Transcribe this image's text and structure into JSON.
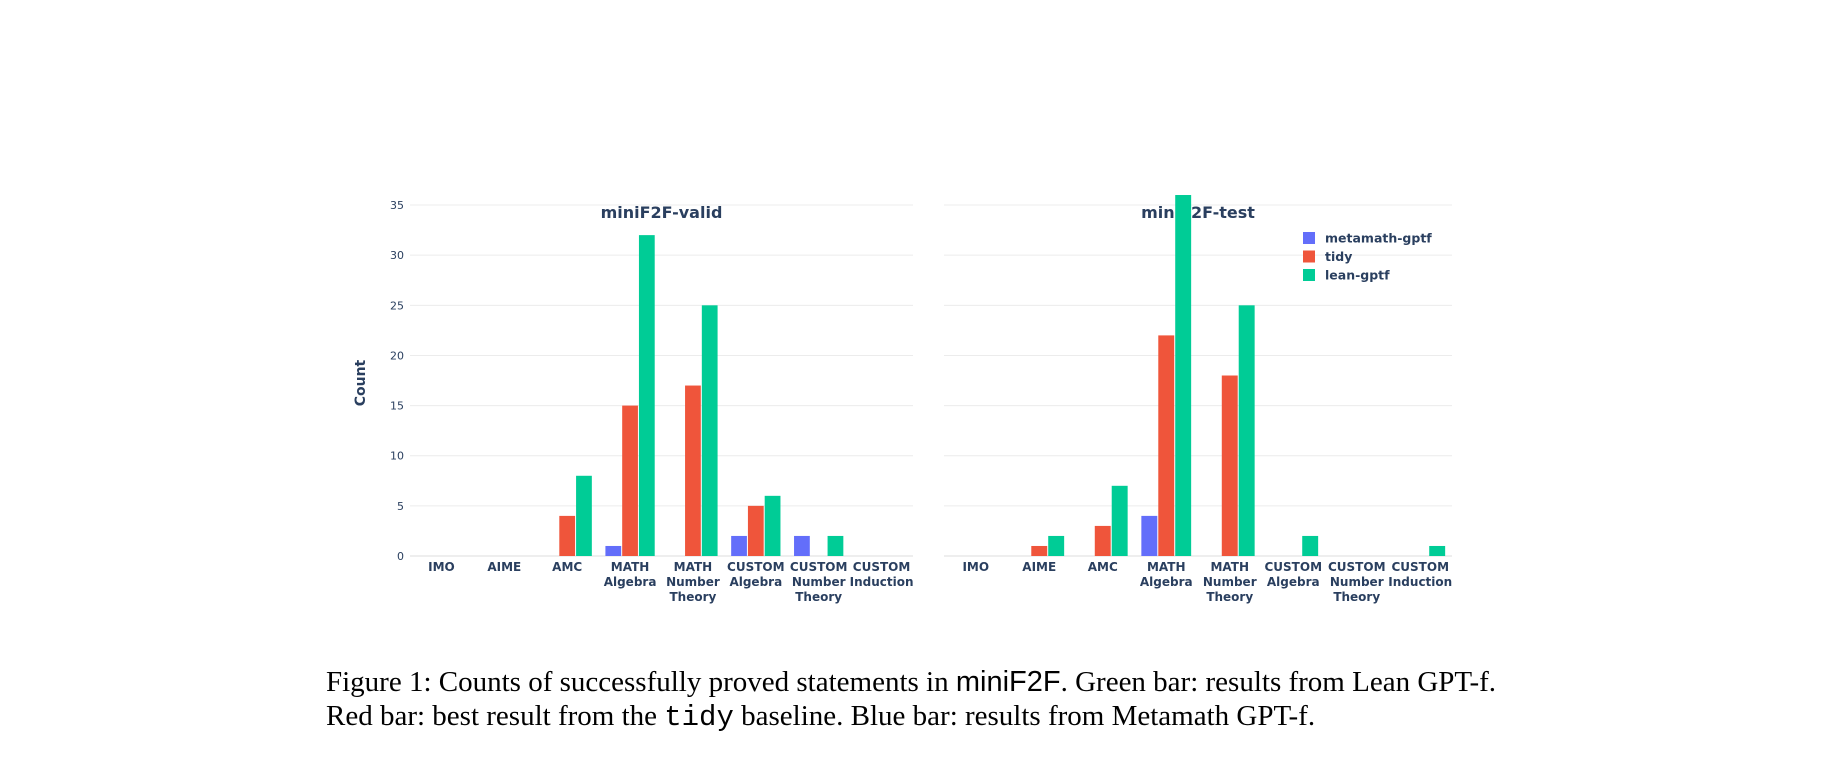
{
  "chart_data": [
    {
      "type": "bar",
      "title": "miniF2F-valid",
      "ylabel": "Count",
      "xlabel": "",
      "ylim": [
        0,
        36.5
      ],
      "yticks": [
        0,
        5,
        10,
        15,
        20,
        25,
        30,
        35
      ],
      "categories": [
        [
          "IMO"
        ],
        [
          "AIME"
        ],
        [
          "AMC"
        ],
        [
          "MATH",
          "Algebra"
        ],
        [
          "MATH",
          "Number",
          "Theory"
        ],
        [
          "CUSTOM",
          "Algebra"
        ],
        [
          "CUSTOM",
          "Number",
          "Theory"
        ],
        [
          "CUSTOM",
          "Induction"
        ]
      ],
      "series": [
        {
          "name": "metamath-gptf",
          "color": "#636efa",
          "values": [
            0,
            0,
            0,
            1,
            0,
            2,
            2,
            0
          ]
        },
        {
          "name": "tidy",
          "color": "#ef553b",
          "values": [
            0,
            0,
            4,
            15,
            17,
            5,
            0,
            0
          ]
        },
        {
          "name": "lean-gptf",
          "color": "#00cc96",
          "values": [
            0,
            0,
            8,
            32,
            25,
            6,
            2,
            0
          ]
        }
      ]
    },
    {
      "type": "bar",
      "title": "miniF2F-test",
      "ylabel": "",
      "xlabel": "",
      "ylim": [
        0,
        36.5
      ],
      "yticks": [
        0,
        5,
        10,
        15,
        20,
        25,
        30,
        35
      ],
      "categories": [
        [
          "IMO"
        ],
        [
          "AIME"
        ],
        [
          "AMC"
        ],
        [
          "MATH",
          "Algebra"
        ],
        [
          "MATH",
          "Number",
          "Theory"
        ],
        [
          "CUSTOM",
          "Algebra"
        ],
        [
          "CUSTOM",
          "Number",
          "Theory"
        ],
        [
          "CUSTOM",
          "Induction"
        ]
      ],
      "series": [
        {
          "name": "metamath-gptf",
          "color": "#636efa",
          "values": [
            0,
            0,
            0,
            4,
            0,
            0,
            0,
            0
          ]
        },
        {
          "name": "tidy",
          "color": "#ef553b",
          "values": [
            0,
            1,
            3,
            22,
            18,
            0,
            0,
            0
          ]
        },
        {
          "name": "lean-gptf",
          "color": "#00cc96",
          "values": [
            0,
            2,
            7,
            36,
            25,
            2,
            0,
            1
          ]
        }
      ]
    }
  ],
  "legend": {
    "position": "top-right",
    "entries": [
      {
        "name": "metamath-gptf",
        "color": "#636efa"
      },
      {
        "name": "tidy",
        "color": "#ef553b"
      },
      {
        "name": "lean-gptf",
        "color": "#00cc96"
      }
    ]
  },
  "caption": {
    "line1_a": "Figure 1: Counts of successfully proved statements in ",
    "line1_b": "miniF2F",
    "line1_c": ". Green bar: results from Lean GPT-f.",
    "line2_a": "Red bar: best result from the ",
    "line2_b": "tidy",
    "line2_c": " baseline. Blue bar: results from Metamath GPT-f."
  }
}
